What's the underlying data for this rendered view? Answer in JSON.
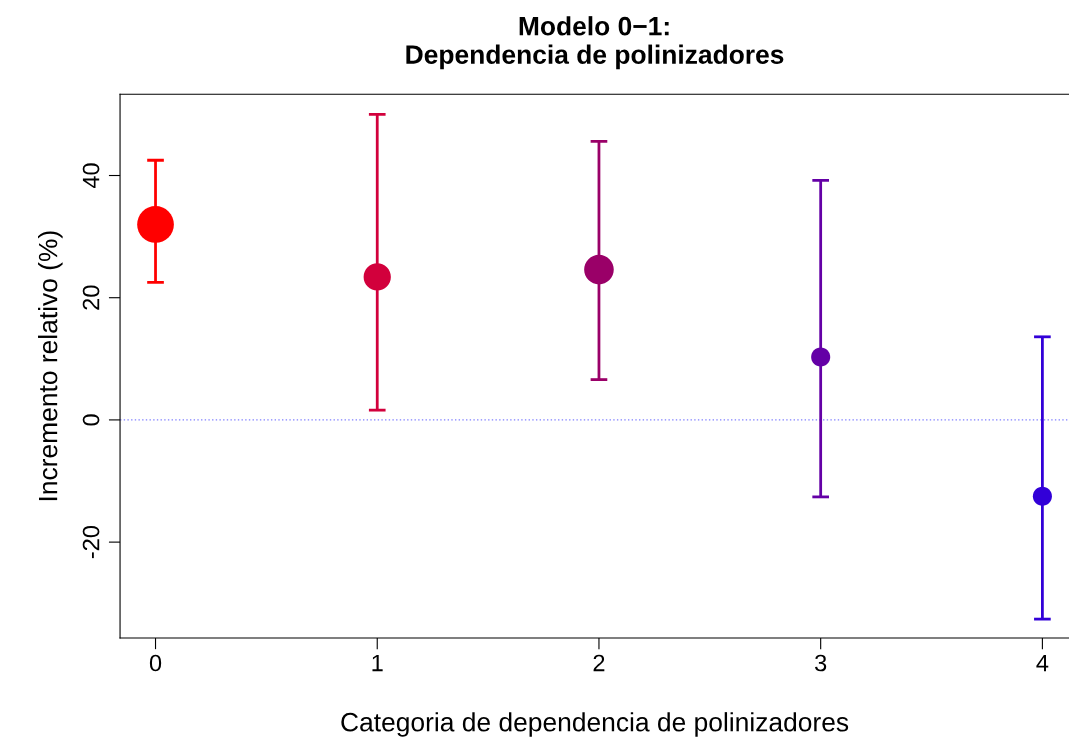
{
  "chart_data": {
    "type": "bubble",
    "title": "Modelo 0−1:\nDependencia de polinizadores",
    "xlabel": "Categoria de dependencia de polinizadores",
    "ylabel": "Incremento relativo (%)",
    "x": [
      0,
      1,
      2,
      3,
      4
    ],
    "values": [
      32.0,
      23.4,
      24.6,
      10.3,
      -12.5
    ],
    "sizes": [
      1,
      0.55,
      0.65,
      0.27,
      0.27
    ],
    "errors": [
      [
        22.5,
        42.5
      ],
      [
        1.6,
        50.0
      ],
      [
        6.6,
        45.6
      ],
      [
        -12.6,
        39.2
      ],
      [
        -32.6,
        13.6
      ]
    ],
    "colors": [
      "#ff0000",
      "#d2003c",
      "#9a0068",
      "#6400a6",
      "#3200d8"
    ],
    "xlim": [
      -0.16,
      4.12
    ],
    "xticks": [
      0,
      1,
      2,
      3,
      4
    ],
    "ylim": [
      -35.7,
      53.3
    ],
    "yticks": [
      -20,
      0,
      20,
      40
    ],
    "ref_lines": [
      {
        "axis": "y",
        "value": 0,
        "color": "#8080ff",
        "line_style": "dotted"
      }
    ],
    "grid": false,
    "legend": false
  }
}
